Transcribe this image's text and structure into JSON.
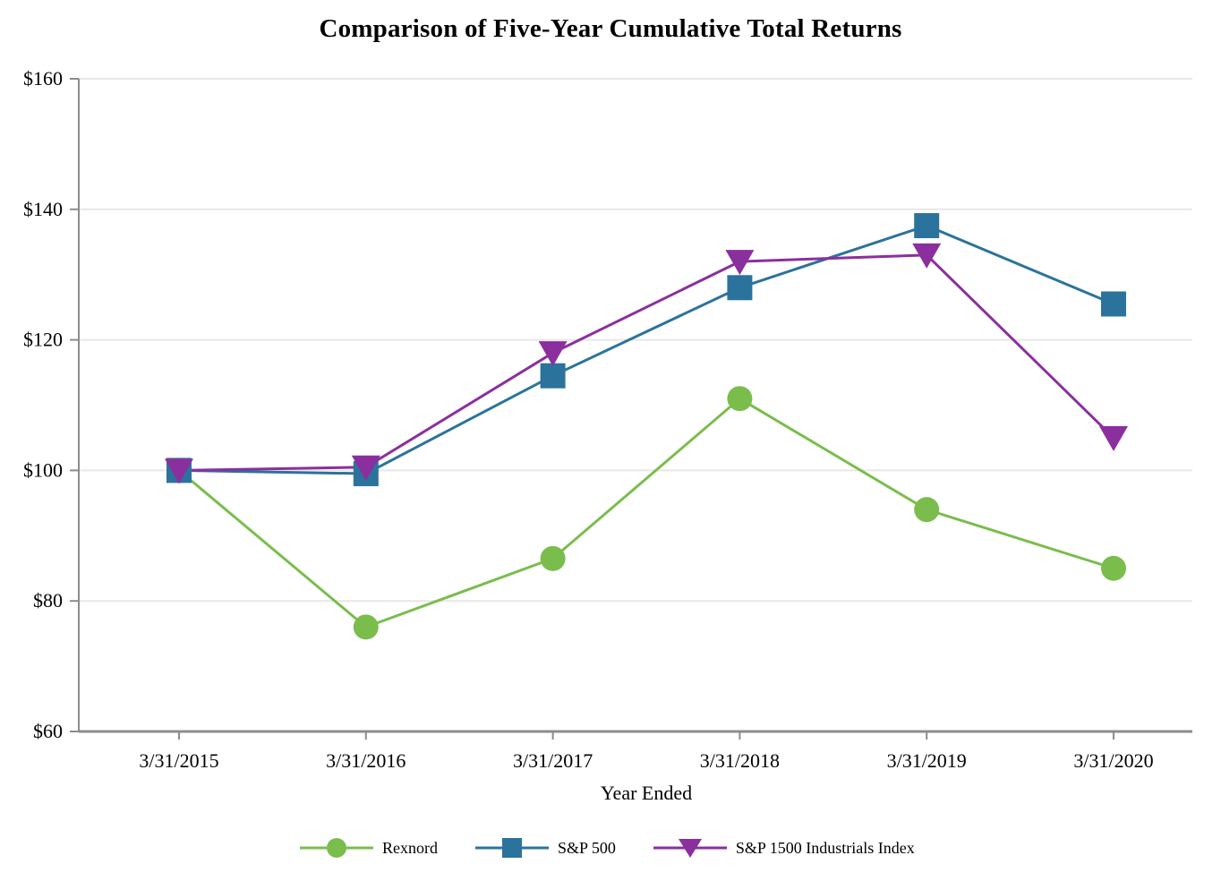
{
  "chart_data": {
    "type": "line",
    "title": "Comparison of Five-Year Cumulative Total Returns",
    "xlabel": "Year Ended",
    "ylabel": "",
    "categories": [
      "3/31/2015",
      "3/31/2016",
      "3/31/2017",
      "3/31/2018",
      "3/31/2019",
      "3/31/2020"
    ],
    "series": [
      {
        "name": "Rexnord",
        "marker": "circle",
        "color": "#7ABD4C",
        "values": [
          100,
          76,
          86.5,
          111,
          94,
          85
        ]
      },
      {
        "name": "S&P 500",
        "marker": "square",
        "color": "#2B739C",
        "values": [
          100,
          99.5,
          114.5,
          128,
          137.5,
          125.5
        ]
      },
      {
        "name": "S&P 1500 Industrials Index",
        "marker": "triangle-down",
        "color": "#8B2F9E",
        "values": [
          100,
          100.5,
          118,
          132,
          133,
          105
        ]
      }
    ],
    "ylim": [
      60,
      160
    ],
    "ytick_step": 20,
    "ytick_labels": [
      "$60",
      "$80",
      "$100",
      "$120",
      "$140",
      "$160"
    ],
    "grid": true,
    "legend_position": "bottom"
  },
  "colors": {
    "background": "#FFFFFF",
    "gridline": "#E7E7E7",
    "axis_line": "#8C8C8C",
    "text": "#000000"
  }
}
